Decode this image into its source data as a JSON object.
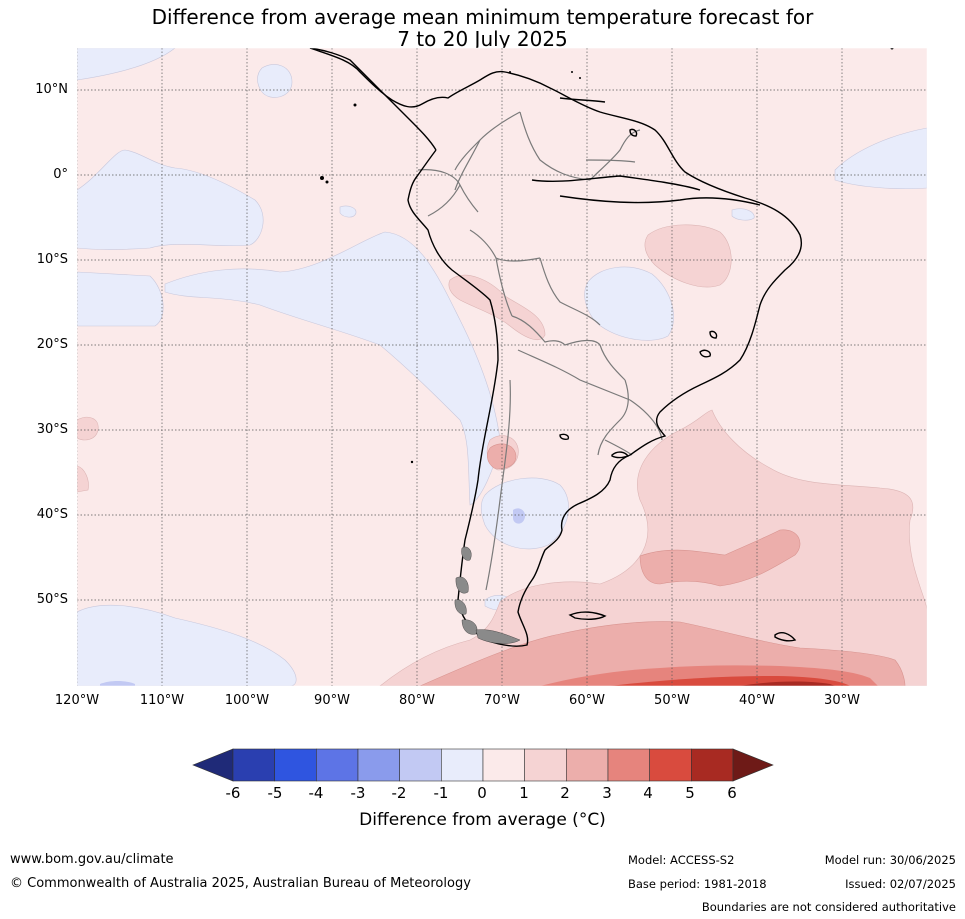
{
  "title_line1": "Difference from average mean minimum temperature forecast for",
  "title_line2": "7 to 20 July 2025",
  "lat_labels": [
    "10°N",
    "0°",
    "10°S",
    "20°S",
    "30°S",
    "40°S",
    "50°S"
  ],
  "lon_labels": [
    "120°W",
    "110°W",
    "100°W",
    "90°W",
    "80°W",
    "70°W",
    "60°W",
    "50°W",
    "40°W",
    "30°W"
  ],
  "colorbar": {
    "title": "Difference from average (",
    "title_unit": "°C)",
    "labels": [
      "-6",
      "-5",
      "-4",
      "-3",
      "-2",
      "-1",
      "0",
      "1",
      "2",
      "3",
      "4",
      "5",
      "6"
    ],
    "colors": [
      "#1f2a78",
      "#2a3fb0",
      "#2f55e0",
      "#5d74e6",
      "#8a9bec",
      "#c2c9f3",
      "#e8ecfb",
      "#fbeaea",
      "#f5d3d3",
      "#ecaeab",
      "#e6847d",
      "#d94b3e",
      "#a82a22",
      "#6e1a17"
    ]
  },
  "footer": {
    "website": "www.bom.gov.au/climate",
    "copyright": "© Commonwealth of Australia 2025, Australian Bureau of Meteorology",
    "model": "Model: ACCESS-S2",
    "base_period": "Base period: 1981-2018",
    "model_run": "Model run: 30/06/2025",
    "issued": "Issued: 02/07/2025",
    "disclaimer": "Boundaries are not considered authoritative"
  }
}
